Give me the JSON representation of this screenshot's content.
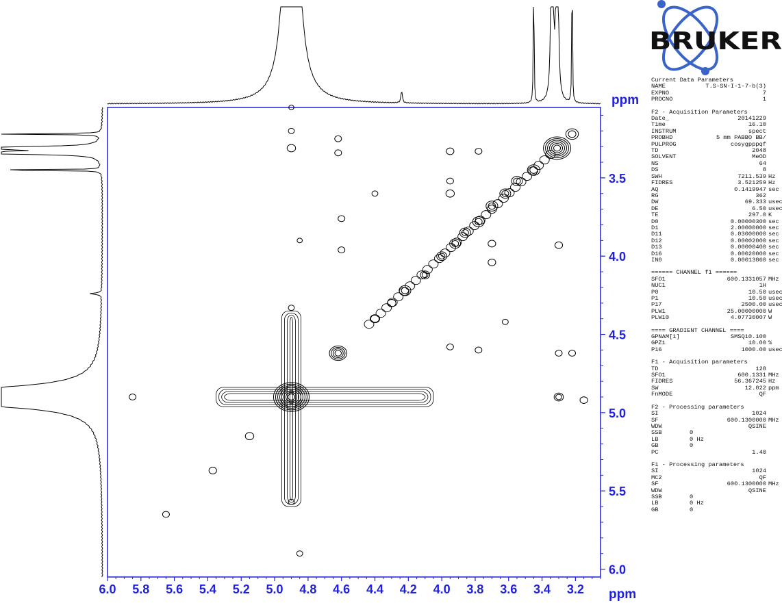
{
  "logo_text": "BRUKER",
  "colors": {
    "axis": "#2020e0",
    "trace": "#000000",
    "logo_blue": "#3a64c8"
  },
  "chart_data": {
    "type": "2d-nmr-contour",
    "experiment": "cosygpppqf",
    "xlabel": "ppm",
    "ylabel": "ppm",
    "x_axis": {
      "range": [
        6.0,
        3.05
      ],
      "reversed": true,
      "ticks": [
        "6.0",
        "5.8",
        "5.6",
        "5.4",
        "5.2",
        "5.0",
        "4.8",
        "4.6",
        "4.4",
        "4.2",
        "4.0",
        "3.8",
        "3.6",
        "3.4",
        "3.2"
      ]
    },
    "y_axis": {
      "range": [
        3.05,
        6.05
      ],
      "ticks": [
        "3.5",
        "4.0",
        "4.5",
        "5.0",
        "5.5",
        "6.0"
      ]
    },
    "projection_peaks_ppm": [
      4.9,
      4.24,
      3.45,
      3.34,
      3.31,
      3.22
    ],
    "diagonal_peaks": [
      {
        "x": 3.31,
        "y": 3.31,
        "size": 3.0
      },
      {
        "x": 3.22,
        "y": 3.22,
        "size": 1.2
      },
      {
        "x": 3.45,
        "y": 3.45,
        "size": 1.2
      },
      {
        "x": 3.55,
        "y": 3.52,
        "size": 1.0
      },
      {
        "x": 3.62,
        "y": 3.6,
        "size": 1.0
      },
      {
        "x": 3.7,
        "y": 3.68,
        "size": 1.1
      },
      {
        "x": 3.78,
        "y": 3.78,
        "size": 1.1
      },
      {
        "x": 3.86,
        "y": 3.85,
        "size": 1.0
      },
      {
        "x": 3.92,
        "y": 3.92,
        "size": 1.0
      },
      {
        "x": 4.0,
        "y": 4.0,
        "size": 0.9
      },
      {
        "x": 4.1,
        "y": 4.12,
        "size": 0.8
      },
      {
        "x": 4.22,
        "y": 4.22,
        "size": 1.1
      },
      {
        "x": 4.3,
        "y": 4.3,
        "size": 0.7
      },
      {
        "x": 4.4,
        "y": 4.4,
        "size": 0.7
      },
      {
        "x": 4.62,
        "y": 4.62,
        "size": 1.8
      },
      {
        "x": 4.9,
        "y": 4.9,
        "size": 4.0
      },
      {
        "x": 5.15,
        "y": 5.15,
        "size": 0.7
      },
      {
        "x": 5.37,
        "y": 5.37,
        "size": 0.6
      },
      {
        "x": 5.65,
        "y": 5.65,
        "size": 0.5
      }
    ],
    "cross_peaks": [
      {
        "x": 4.9,
        "y": 3.31,
        "size": 0.7
      },
      {
        "x": 4.62,
        "y": 3.25,
        "size": 0.5
      },
      {
        "x": 4.62,
        "y": 3.34,
        "size": 0.5
      },
      {
        "x": 3.95,
        "y": 3.33,
        "size": 0.6
      },
      {
        "x": 3.78,
        "y": 3.33,
        "size": 0.5
      },
      {
        "x": 3.95,
        "y": 3.52,
        "size": 0.5
      },
      {
        "x": 4.4,
        "y": 3.6,
        "size": 0.4
      },
      {
        "x": 4.6,
        "y": 3.76,
        "size": 0.5
      },
      {
        "x": 4.6,
        "y": 3.96,
        "size": 0.5
      },
      {
        "x": 3.95,
        "y": 3.6,
        "size": 0.7
      },
      {
        "x": 3.7,
        "y": 3.92,
        "size": 0.6
      },
      {
        "x": 3.3,
        "y": 3.93,
        "size": 0.6
      },
      {
        "x": 3.7,
        "y": 4.04,
        "size": 0.6
      },
      {
        "x": 3.62,
        "y": 4.42,
        "size": 0.4
      },
      {
        "x": 3.95,
        "y": 4.58,
        "size": 0.5
      },
      {
        "x": 3.78,
        "y": 4.6,
        "size": 0.5
      },
      {
        "x": 3.3,
        "y": 4.62,
        "size": 0.5
      },
      {
        "x": 3.22,
        "y": 4.62,
        "size": 0.5
      },
      {
        "x": 3.3,
        "y": 4.9,
        "size": 0.8
      },
      {
        "x": 3.15,
        "y": 4.92,
        "size": 0.6
      },
      {
        "x": 5.85,
        "y": 4.9,
        "size": 0.5
      },
      {
        "x": 4.9,
        "y": 5.57,
        "size": 0.4
      },
      {
        "x": 4.85,
        "y": 5.9,
        "size": 0.4
      },
      {
        "x": 4.9,
        "y": 4.33,
        "size": 0.4
      },
      {
        "x": 4.85,
        "y": 3.9,
        "size": 0.3
      },
      {
        "x": 4.9,
        "y": 3.05,
        "size": 0.3
      },
      {
        "x": 4.9,
        "y": 3.2,
        "size": 0.4
      }
    ]
  },
  "params": [
    {
      "type": "header",
      "text": "Current Data Parameters"
    },
    {
      "k": "NAME",
      "v": "T.S-SN-I-1-7-b(3)",
      "u": ""
    },
    {
      "k": "EXPNO",
      "v": "7",
      "u": ""
    },
    {
      "k": "PROCNO",
      "v": "1",
      "u": ""
    },
    {
      "type": "gap"
    },
    {
      "type": "header",
      "text": "F2 - Acquisition Parameters"
    },
    {
      "k": "Date_",
      "v": "20141229",
      "u": ""
    },
    {
      "k": "Time",
      "v": "16.10",
      "u": ""
    },
    {
      "k": "INSTRUM",
      "v": "spect",
      "u": ""
    },
    {
      "k": "PROBHD",
      "v": "5 mm PABBO BB/",
      "u": ""
    },
    {
      "k": "PULPROG",
      "v": "cosygpppqf",
      "u": ""
    },
    {
      "k": "TD",
      "v": "2048",
      "u": ""
    },
    {
      "k": "SOLVENT",
      "v": "MeOD",
      "u": ""
    },
    {
      "k": "NS",
      "v": "64",
      "u": ""
    },
    {
      "k": "DS",
      "v": "8",
      "u": ""
    },
    {
      "k": "SWH",
      "v": "7211.539",
      "u": "Hz"
    },
    {
      "k": "FIDRES",
      "v": "3.521259",
      "u": "Hz"
    },
    {
      "k": "AQ",
      "v": "0.1419947",
      "u": "sec"
    },
    {
      "k": "RG",
      "v": "362",
      "u": ""
    },
    {
      "k": "DW",
      "v": "69.333",
      "u": "usec"
    },
    {
      "k": "DE",
      "v": "6.50",
      "u": "usec"
    },
    {
      "k": "TE",
      "v": "297.0",
      "u": "K"
    },
    {
      "k": "D0",
      "v": "0.00000300",
      "u": "sec"
    },
    {
      "k": "D1",
      "v": "2.00000000",
      "u": "sec"
    },
    {
      "k": "D11",
      "v": "0.03000000",
      "u": "sec"
    },
    {
      "k": "D12",
      "v": "0.00002000",
      "u": "sec"
    },
    {
      "k": "D13",
      "v": "0.00000400",
      "u": "sec"
    },
    {
      "k": "D16",
      "v": "0.00020000",
      "u": "sec"
    },
    {
      "k": "IN0",
      "v": "0.00013860",
      "u": "sec"
    },
    {
      "type": "gap"
    },
    {
      "type": "header",
      "text": "====== CHANNEL f1 ======"
    },
    {
      "k": "SFO1",
      "v": "600.1331057",
      "u": "MHz"
    },
    {
      "k": "NUC1",
      "v": "1H",
      "u": ""
    },
    {
      "k": "P0",
      "v": "10.50",
      "u": "usec"
    },
    {
      "k": "P1",
      "v": "10.50",
      "u": "usec"
    },
    {
      "k": "P17",
      "v": "2500.00",
      "u": "usec"
    },
    {
      "k": "PLW1",
      "v": "25.00000000",
      "u": "W"
    },
    {
      "k": "PLW10",
      "v": "4.07730007",
      "u": "W"
    },
    {
      "type": "gap"
    },
    {
      "type": "header",
      "text": "==== GRADIENT CHANNEL ===="
    },
    {
      "k": "GPNAM[1]",
      "v": "SMSQ10.100",
      "u": ""
    },
    {
      "k": "GPZ1",
      "v": "10.00",
      "u": "%"
    },
    {
      "k": "P16",
      "v": "1000.00",
      "u": "usec"
    },
    {
      "type": "gap"
    },
    {
      "type": "header",
      "text": "F1 - Acquisition parameters"
    },
    {
      "k": "TD",
      "v": "128",
      "u": ""
    },
    {
      "k": "SFO1",
      "v": "600.1331",
      "u": "MHz"
    },
    {
      "k": "FIDRES",
      "v": "56.367245",
      "u": "Hz"
    },
    {
      "k": "SW",
      "v": "12.022",
      "u": "ppm"
    },
    {
      "k": "FnMODE",
      "v": "QF",
      "u": ""
    },
    {
      "type": "gap"
    },
    {
      "type": "header",
      "text": "F2 - Processing parameters"
    },
    {
      "k": "SI",
      "v": "1024",
      "u": ""
    },
    {
      "k": "SF",
      "v": "600.1300000",
      "u": "MHz"
    },
    {
      "k": "WDW",
      "v": "QSINE",
      "u": ""
    },
    {
      "k": "SSB",
      "v": "0",
      "u": "",
      "left": true
    },
    {
      "k": "LB",
      "v": "0 Hz",
      "u": "",
      "left": true
    },
    {
      "k": "GB",
      "v": "0",
      "u": "",
      "left": true
    },
    {
      "k": "PC",
      "v": "1.40",
      "u": ""
    },
    {
      "type": "gap"
    },
    {
      "type": "header",
      "text": "F1 - Processing parameters"
    },
    {
      "k": "SI",
      "v": "1024",
      "u": ""
    },
    {
      "k": "MC2",
      "v": "QF",
      "u": ""
    },
    {
      "k": "SF",
      "v": "600.1300000",
      "u": "MHz"
    },
    {
      "k": "WDW",
      "v": "QSINE",
      "u": ""
    },
    {
      "k": "SSB",
      "v": "0",
      "u": "",
      "left": true
    },
    {
      "k": "LB",
      "v": "0 Hz",
      "u": "",
      "left": true
    },
    {
      "k": "GB",
      "v": "0",
      "u": "",
      "left": true
    }
  ]
}
